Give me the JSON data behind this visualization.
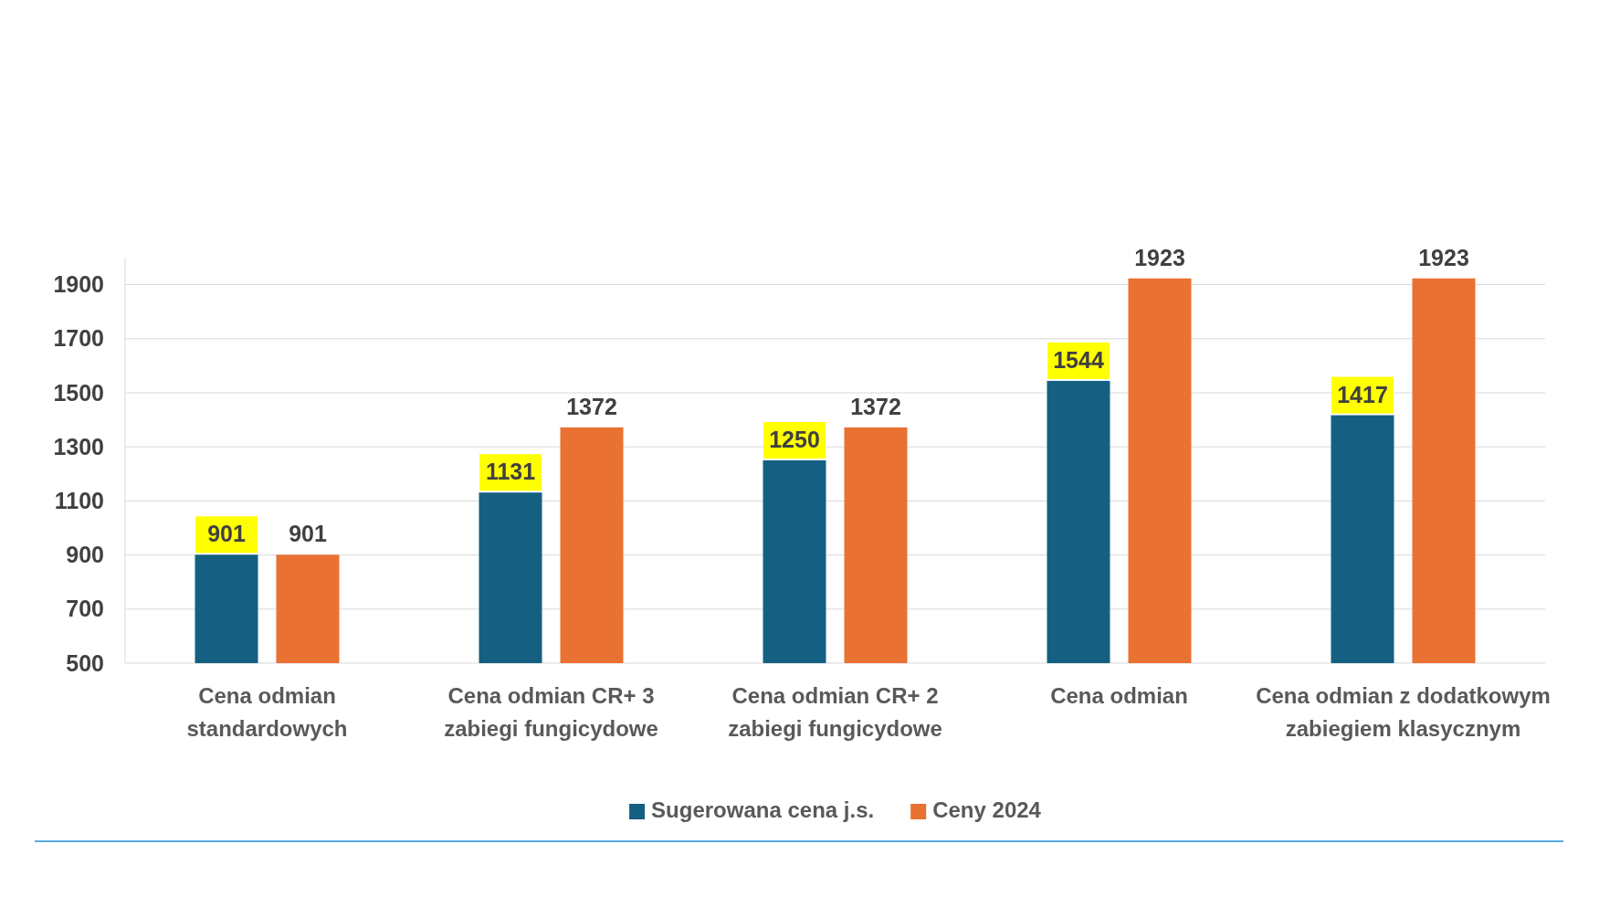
{
  "chart_data": {
    "type": "bar",
    "categories": [
      "Cena odmian standardowych",
      "Cena odmian CR+ 3 zabiegi fungicydowe",
      "Cena odmian CR+ 2 zabiegi fungicydowe",
      "Cena odmian",
      "Cena odmian z dodatkowym zabiegiem klasycznym"
    ],
    "series": [
      {
        "name": "Sugerowana cena j.s.",
        "color": "#156082",
        "values": [
          901,
          1131,
          1250,
          1544,
          1417
        ]
      },
      {
        "name": "Ceny 2024",
        "color": "#e97132",
        "values": [
          901,
          1372,
          1372,
          1923,
          1923
        ]
      }
    ],
    "ylim": [
      500,
      2000
    ],
    "yticks": [
      500,
      700,
      900,
      1100,
      1300,
      1500,
      1700,
      1900
    ],
    "grid": "y",
    "legend": "bottom",
    "data_labels": true
  }
}
